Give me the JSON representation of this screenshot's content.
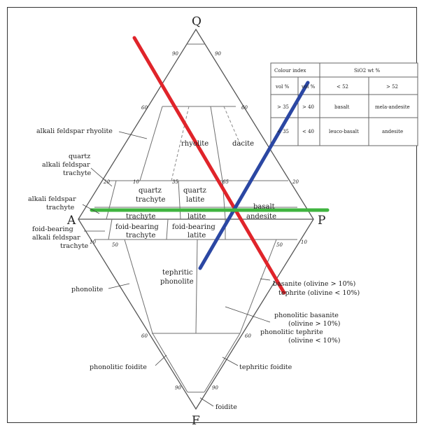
{
  "corners": {
    "q": "Q",
    "a": "A",
    "p": "P",
    "f": "F"
  },
  "ticks": {
    "upper_90_left": "90",
    "upper_90_right": "90",
    "upper_60_left": "60",
    "upper_60_right": "60",
    "upper_20_left": "20",
    "upper_20_right": "20",
    "upper_10_mid": "10",
    "upper_35": "35",
    "upper_65": "65",
    "lower_10_left": "10",
    "lower_10_right": "10",
    "lower_50_left": "50",
    "lower_50_right": "50",
    "lower_60_left": "60",
    "lower_60_right": "60",
    "lower_90_left": "90",
    "lower_90_right": "90"
  },
  "fields": {
    "rhyolite": "rhyolite",
    "dacite": "dacite",
    "quartz_trachyte_1": "quartz",
    "quartz_trachyte_2": "trachyte",
    "quartz_latite_1": "quartz",
    "quartz_latite_2": "latite",
    "basalt": "basalt",
    "andesite": "andesite",
    "trachyte": "trachyte",
    "latite": "latite",
    "foid_trachyte_1": "foid-bearing",
    "foid_trachyte_2": "trachyte",
    "foid_latite_1": "foid-bearing",
    "foid_latite_2": "latite",
    "tephritic_phonolite_1": "tephritic",
    "tephritic_phonolite_2": "phonolite"
  },
  "outer_labels": {
    "alkali_feldspar_rhyolite": "alkali feldspar rhyolite",
    "quartz_alkali_trachyte_1": "quartz",
    "quartz_alkali_trachyte_2": "alkali feldspar",
    "quartz_alkali_trachyte_3": "trachyte",
    "alkali_trachyte_1": "alkali feldspar",
    "alkali_trachyte_2": "trachyte",
    "foid_alkali_trachyte_1": "foid-bearing",
    "foid_alkali_trachyte_2": "alkali feldspar",
    "foid_alkali_trachyte_3": "trachyte",
    "phonolite": "phonolite",
    "phonolitic_foidite": "phonolitic foidite",
    "foidite": "foidite",
    "tephritic_foidite": "tephritic foidite",
    "basanite": "basanite (olivine > 10%)",
    "tephrite": "tephrite (olivine < 10%)",
    "phonolitic_basanite_1": "phonolitic basanite",
    "phonolitic_basanite_2": "(olivine > 10%)",
    "phonolitic_tephrite_1": "phonolitic tephrite",
    "phonolitic_tephrite_2": "(olivine < 10%)"
  },
  "table": {
    "header_left": "Colour index",
    "header_right": "SiO2 wt %",
    "rows": [
      [
        "vol %",
        "vol %",
        "< 52",
        "> 52"
      ],
      [
        "> 35",
        "> 40",
        "basalt",
        "mela-andesite"
      ],
      [
        "< 35",
        "< 40",
        "leuco-basalt",
        "andesite"
      ]
    ]
  },
  "colors": {
    "red_line": "#e0242a",
    "blue_line": "#2b47a3",
    "green_line": "#3fb43f"
  }
}
